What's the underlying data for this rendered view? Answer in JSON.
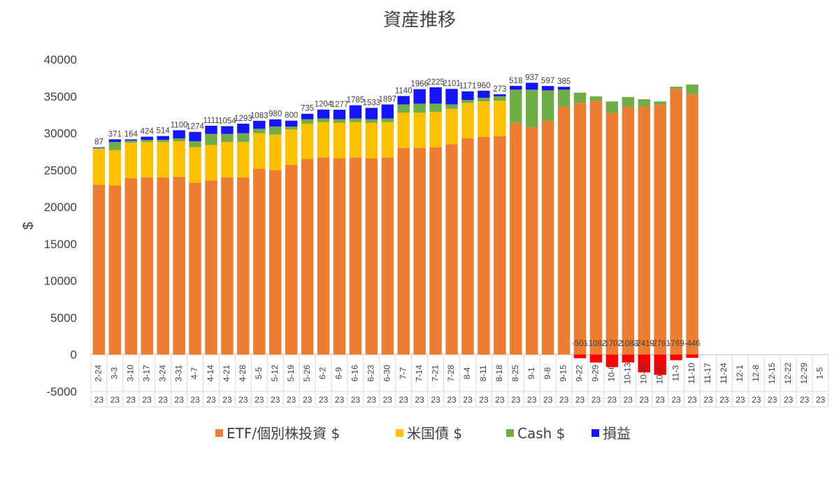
{
  "chart_data": {
    "type": "bar",
    "title": "資産推移",
    "xlabel": "",
    "ylabel": "$",
    "ylim": [
      -5000,
      40000
    ],
    "yticks": [
      -5000,
      0,
      5000,
      10000,
      15000,
      20000,
      25000,
      30000,
      35000,
      40000
    ],
    "stacked": true,
    "grid": false,
    "legend_position": "bottom",
    "categories": [
      "2-24",
      "3-3",
      "3-10",
      "3-17",
      "3-24",
      "3-31",
      "4-7",
      "4-14",
      "4-21",
      "4-28",
      "5-5",
      "5-12",
      "5-19",
      "5-26",
      "6-2",
      "6-9",
      "6-16",
      "6-23",
      "6-30",
      "7-7",
      "7-14",
      "7-21",
      "7-28",
      "8-4",
      "8-11",
      "8-18",
      "8-25",
      "9-1",
      "9-8",
      "9-15",
      "9-22",
      "9-29",
      "10-6",
      "10-13",
      "10-20",
      "10-27",
      "11-3",
      "11-10",
      "11-17",
      "11-24",
      "12-1",
      "12-8",
      "12-15",
      "12-22",
      "12-29",
      "1-5"
    ],
    "category_year": "23",
    "series": [
      {
        "name": "ETF/個別株投資 $",
        "color": "#ED7D31",
        "values": [
          23000,
          22900,
          23900,
          24000,
          24000,
          24100,
          23300,
          23600,
          24000,
          24000,
          25200,
          25000,
          25700,
          26500,
          26700,
          26600,
          26700,
          26600,
          26700,
          28000,
          28000,
          28100,
          28500,
          29300,
          29500,
          29600,
          31400,
          30800,
          31700,
          33600,
          34100,
          34400,
          32700,
          33600,
          33600,
          33900,
          36000,
          35300,
          0,
          0,
          0,
          0,
          0,
          0,
          0,
          0
        ]
      },
      {
        "name": "米国債 $",
        "color": "#FFC000",
        "values": [
          4900,
          4800,
          4800,
          4800,
          4800,
          4800,
          4800,
          4800,
          4800,
          4800,
          4800,
          4800,
          4800,
          4800,
          4800,
          4800,
          4800,
          4800,
          4800,
          4800,
          4800,
          4800,
          4800,
          4800,
          4800,
          4800,
          0,
          0,
          0,
          0,
          0,
          0,
          0,
          0,
          0,
          0,
          0,
          0,
          0,
          0,
          0,
          0,
          0,
          0,
          0,
          0
        ]
      },
      {
        "name": "Cash $",
        "color": "#70AD47",
        "values": [
          100,
          1100,
          300,
          300,
          300,
          400,
          800,
          1500,
          1100,
          1200,
          600,
          1100,
          400,
          600,
          500,
          500,
          500,
          500,
          500,
          1100,
          1200,
          1100,
          600,
          400,
          500,
          600,
          4500,
          5100,
          4100,
          2300,
          1400,
          600,
          1600,
          1300,
          1000,
          400,
          300,
          1300,
          0,
          0,
          0,
          0,
          0,
          0,
          0,
          0
        ]
      },
      {
        "name": "損益",
        "color": "#1414FF",
        "values": [
          87,
          371,
          164,
          424,
          514,
          1100,
          1274,
          1111,
          1054,
          1293,
          1083,
          980,
          800,
          735,
          1204,
          1277,
          1785,
          1533,
          1897,
          1140,
          1966,
          2225,
          2101,
          1171,
          960,
          273,
          518,
          937,
          597,
          385,
          -501,
          -1082,
          -1702,
          -1083,
          -2419,
          -2761,
          -769,
          -446,
          0,
          0,
          0,
          0,
          0,
          0,
          0,
          0
        ]
      }
    ],
    "data_labels": [
      "87",
      "371",
      "164",
      "424",
      "514",
      "1100",
      "1274",
      "1111",
      "1054",
      "1293",
      "1083",
      "980",
      "800",
      "735",
      "1204",
      "1277",
      "1785",
      "1533",
      "1897",
      "1140",
      "1966",
      "2225",
      "2101",
      "1171",
      "960",
      "273",
      "518",
      "937",
      "597",
      "385",
      "-501",
      "-1082",
      "-1702",
      "-1083",
      "-2419",
      "-2761",
      "-769",
      "-446",
      "",
      "",
      "",
      "",
      "",
      "",
      "",
      ""
    ],
    "negative_color": "#FF0000"
  }
}
